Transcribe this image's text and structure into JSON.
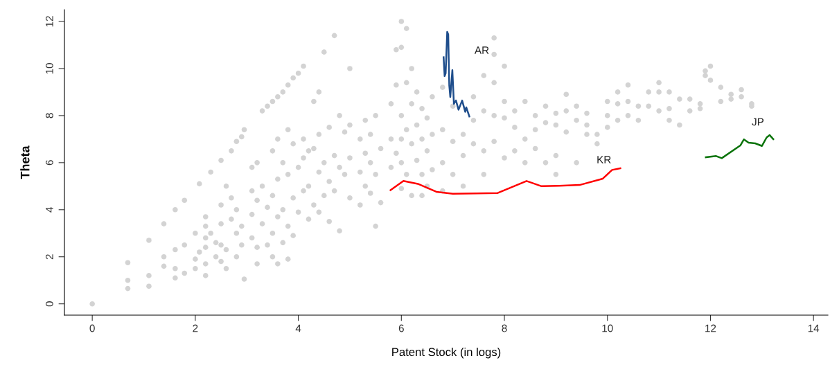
{
  "chart_data": {
    "type": "scatter",
    "xlabel": "Patent Stock (in logs)",
    "ylabel": "Theta",
    "xlim": [
      -0.54,
      14.28
    ],
    "ylim": [
      -0.48,
      12.5
    ],
    "xticks": [
      0,
      2,
      4,
      6,
      8,
      10,
      12,
      14
    ],
    "yticks": [
      0,
      2,
      4,
      6,
      8,
      10,
      12
    ],
    "grid": false,
    "legend": false,
    "series": [
      {
        "color": "#d3d3d3",
        "marker": "circle",
        "x": [
          0,
          0.69,
          0.69,
          0.69,
          1.1,
          1.1,
          1.1,
          1.39,
          1.39,
          1.39,
          1.61,
          1.61,
          1.61,
          1.61,
          1.79,
          1.79,
          1.79,
          2.0,
          2.0,
          2.0,
          2.08,
          2.08,
          2.2,
          2.2,
          2.2,
          2.2,
          2.2,
          2.2,
          2.3,
          2.3,
          2.4,
          2.4,
          2.5,
          2.5,
          2.5,
          2.5,
          2.5,
          2.6,
          2.6,
          2.6,
          2.7,
          2.7,
          2.7,
          2.8,
          2.8,
          2.8,
          2.8,
          2.9,
          2.9,
          2.9,
          2.95,
          2.95,
          3.1,
          3.1,
          3.1,
          3.1,
          3.2,
          3.2,
          3.2,
          3.2,
          3.3,
          3.3,
          3.3,
          3.4,
          3.4,
          3.4,
          3.5,
          3.5,
          3.5,
          3.5,
          3.5,
          3.6,
          3.6,
          3.6,
          3.6,
          3.6,
          3.7,
          3.7,
          3.7,
          3.7,
          3.8,
          3.8,
          3.8,
          3.8,
          3.8,
          3.9,
          3.9,
          3.9,
          3.9,
          4.0,
          4.0,
          4.0,
          4.1,
          4.1,
          4.1,
          4.1,
          4.2,
          4.2,
          4.2,
          4.3,
          4.3,
          4.3,
          4.4,
          4.4,
          4.4,
          4.4,
          4.5,
          4.5,
          4.5,
          4.6,
          4.6,
          4.6,
          4.7,
          4.7,
          4.7,
          4.8,
          4.8,
          4.8,
          4.9,
          4.9,
          5.0,
          5.0,
          5.0,
          5.0,
          5.2,
          5.2,
          5.2,
          5.3,
          5.3,
          5.3,
          5.4,
          5.4,
          5.4,
          5.5,
          5.5,
          5.5,
          5.6,
          5.6,
          5.8,
          5.8,
          5.8,
          5.9,
          5.9,
          5.9,
          6.0,
          6.0,
          6.0,
          6.0,
          6.0,
          6.0,
          6.1,
          6.1,
          6.1,
          6.1,
          6.2,
          6.2,
          6.2,
          6.2,
          6.3,
          6.3,
          6.3,
          6.4,
          6.4,
          6.4,
          6.4,
          6.5,
          6.5,
          6.5,
          6.6,
          6.6,
          6.6,
          6.8,
          6.8,
          6.8,
          6.8,
          7.0,
          7.0,
          7.0,
          7.2,
          7.2,
          7.2,
          7.4,
          7.4,
          7.4,
          7.6,
          7.6,
          7.6,
          7.6,
          7.8,
          7.8,
          7.8,
          7.8,
          7.8,
          8.0,
          8.0,
          8.0,
          8.0,
          8.2,
          8.2,
          8.2,
          8.4,
          8.4,
          8.4,
          8.6,
          8.6,
          8.6,
          8.8,
          8.8,
          8.8,
          9.0,
          9.0,
          9.0,
          9.0,
          9.2,
          9.2,
          9.2,
          9.4,
          9.4,
          9.4,
          9.6,
          9.6,
          9.6,
          9.8,
          9.8,
          10.0,
          10.0,
          10.0,
          10.2,
          10.2,
          10.2,
          10.4,
          10.4,
          10.4,
          10.6,
          10.6,
          10.8,
          10.8,
          11.0,
          11.0,
          11.0,
          11.2,
          11.2,
          11.2,
          11.4,
          11.4,
          11.6,
          11.6,
          11.8,
          11.8,
          11.9,
          11.9,
          12.0,
          12.0,
          12.2,
          12.2,
          12.4,
          12.4,
          12.6,
          12.6,
          12.8,
          12.8
        ],
        "values": [
          0,
          1.75,
          1.0,
          0.65,
          2.7,
          1.2,
          0.75,
          3.4,
          2.0,
          1.6,
          4.0,
          2.3,
          1.5,
          1.1,
          4.4,
          2.5,
          1.3,
          3.0,
          1.9,
          1.5,
          5.1,
          2.2,
          3.7,
          3.3,
          2.8,
          2.4,
          1.7,
          1.2,
          5.6,
          3.0,
          2.6,
          2.0,
          6.1,
          4.2,
          3.4,
          2.5,
          1.8,
          2.3,
          1.5,
          5.0,
          6.5,
          4.5,
          3.6,
          6.9,
          4.0,
          3.0,
          2.0,
          7.1,
          3.3,
          2.5,
          7.4,
          1.05,
          4.8,
          3.8,
          2.8,
          5.8,
          6.0,
          4.4,
          2.4,
          1.7,
          8.2,
          5.0,
          3.4,
          8.4,
          4.1,
          2.5,
          8.6,
          6.5,
          4.6,
          3.0,
          2.0,
          8.8,
          7.0,
          5.3,
          3.7,
          1.7,
          9.0,
          6.0,
          4.0,
          2.6,
          9.3,
          7.4,
          5.5,
          3.3,
          1.9,
          9.6,
          6.8,
          4.5,
          2.9,
          9.8,
          5.8,
          3.9,
          10.1,
          7.0,
          6.2,
          4.8,
          6.5,
          5.0,
          3.6,
          8.6,
          6.6,
          4.2,
          9.0,
          7.2,
          5.6,
          3.9,
          10.7,
          6.0,
          4.6,
          7.5,
          5.2,
          3.5,
          11.4,
          6.3,
          4.8,
          8.0,
          5.8,
          3.1,
          7.3,
          5.5,
          10.0,
          7.6,
          6.2,
          4.5,
          7.0,
          5.6,
          4.2,
          7.8,
          6.4,
          5.0,
          7.2,
          6.0,
          4.7,
          8.0,
          5.5,
          3.3,
          6.6,
          4.3,
          7.0,
          5.8,
          8.5,
          10.8,
          9.3,
          6.4,
          12.0,
          10.9,
          8.0,
          7.0,
          6.0,
          4.9,
          11.7,
          9.4,
          7.4,
          5.5,
          10.0,
          8.5,
          6.8,
          4.6,
          9.0,
          7.6,
          6.1,
          8.3,
          7.0,
          5.5,
          4.6,
          7.9,
          6.5,
          5.0,
          8.8,
          7.2,
          5.7,
          9.2,
          7.4,
          6.0,
          4.8,
          8.4,
          6.9,
          5.5,
          7.2,
          6.3,
          5.0,
          8.8,
          7.8,
          6.8,
          9.7,
          8.2,
          6.5,
          5.5,
          11.3,
          10.6,
          9.4,
          8.0,
          6.9,
          10.1,
          8.6,
          7.9,
          6.2,
          8.2,
          7.5,
          6.5,
          8.6,
          7.0,
          6.0,
          8.0,
          7.4,
          6.6,
          8.4,
          7.7,
          6.0,
          8.1,
          7.6,
          6.3,
          5.5,
          8.9,
          8.2,
          7.3,
          8.4,
          7.8,
          6.0,
          8.1,
          7.6,
          7.2,
          7.2,
          6.8,
          8.6,
          8.0,
          7.5,
          9.0,
          8.5,
          7.8,
          9.3,
          8.6,
          8.0,
          8.4,
          7.8,
          9.0,
          8.4,
          9.4,
          9.0,
          8.2,
          9.0,
          8.3,
          7.8,
          8.7,
          7.6,
          8.7,
          8.2,
          8.5,
          8.3,
          9.9,
          9.7,
          10.1,
          9.5,
          9.2,
          8.6,
          8.9,
          8.7,
          9.1,
          8.8,
          8.5,
          8.4
        ]
      },
      {
        "type": "line",
        "name": "AR",
        "color": "#1f4e8c",
        "x": [
          6.82,
          6.84,
          6.86,
          6.89,
          6.91,
          6.93,
          6.95,
          6.99,
          7.02,
          7.06,
          7.11,
          7.18,
          7.24,
          7.26,
          7.32
        ],
        "values": [
          10.48,
          9.68,
          9.8,
          11.56,
          11.45,
          9.28,
          8.79,
          9.93,
          8.5,
          8.64,
          8.25,
          8.64,
          8.16,
          8.35,
          7.96
        ]
      },
      {
        "type": "line",
        "name": "KR",
        "color": "#ff0000",
        "x": [
          5.79,
          6.04,
          6.32,
          6.68,
          7.0,
          7.45,
          7.87,
          8.43,
          8.72,
          9.06,
          9.46,
          9.91,
          10.09,
          10.25
        ],
        "values": [
          4.83,
          5.22,
          5.1,
          4.76,
          4.68,
          4.69,
          4.71,
          5.22,
          5.0,
          5.02,
          5.05,
          5.32,
          5.69,
          5.76
        ]
      },
      {
        "type": "line",
        "name": "JP",
        "color": "#0a730a",
        "x": [
          11.91,
          12.11,
          12.22,
          12.58,
          12.65,
          12.74,
          12.87,
          13.0,
          13.09,
          13.15,
          13.22
        ],
        "values": [
          6.23,
          6.28,
          6.19,
          6.73,
          6.99,
          6.85,
          6.82,
          6.71,
          7.07,
          7.17,
          7.0
        ]
      }
    ]
  }
}
